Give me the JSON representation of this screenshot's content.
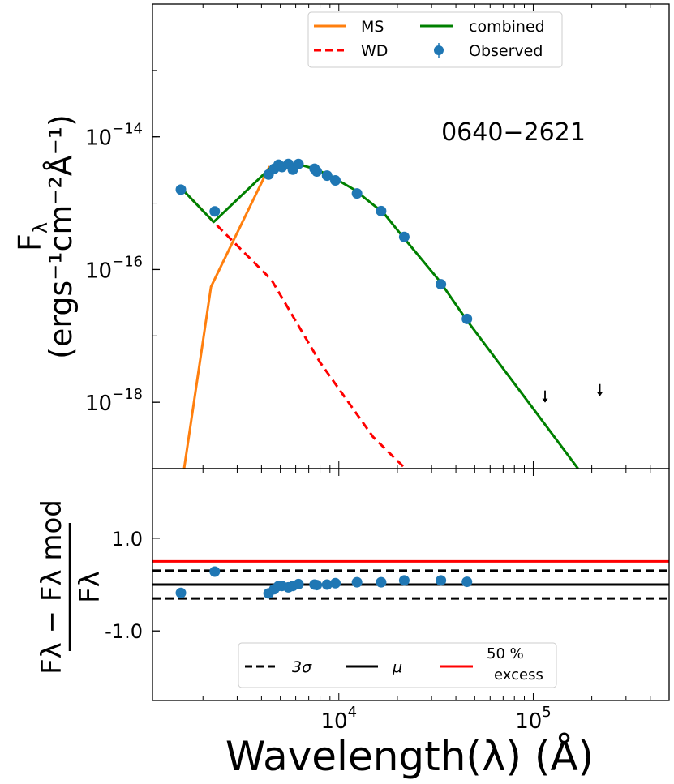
{
  "chart_data": [
    {
      "type": "line",
      "panel": "top",
      "title": "",
      "annotation": "0640−2621",
      "ylabel_line1": "F",
      "ylabel_sub1": "λ",
      "ylabel_line2": "(ergs⁻¹cm⁻²Å⁻¹)",
      "xscale": "log",
      "yscale": "log",
      "xlim": [
        1100,
        500000
      ],
      "ylim": [
        1e-19,
        1e-12
      ],
      "yticks": [
        {
          "value": 1e-14,
          "base": "10",
          "exp": "−14"
        },
        {
          "value": 1e-16,
          "base": "10",
          "exp": "−16"
        },
        {
          "value": 1e-18,
          "base": "10",
          "exp": "−18"
        }
      ],
      "legend": [
        {
          "label": "MS",
          "color": "#ff7f0e",
          "style": "solid"
        },
        {
          "label": "combined",
          "color": "#008000",
          "style": "solid"
        },
        {
          "label": "WD",
          "color": "#ff0000",
          "style": "dashed"
        },
        {
          "label": "Observed",
          "color": "#1f77b4",
          "style": "marker"
        }
      ],
      "legend_position": "top-center",
      "series": [
        {
          "name": "MS",
          "color": "#ff7f0e",
          "x": [
            1600,
            2200,
            4400
          ],
          "y": [
            1e-19,
            5.5e-17,
            3.6e-15
          ]
        },
        {
          "name": "WD",
          "color": "#ff0000",
          "x": [
            1540,
            2300,
            4500,
            8000,
            15000,
            22000
          ],
          "y": [
            1.7e-15,
            5e-16,
            7e-17,
            4e-18,
            3e-19,
            1e-19
          ]
        },
        {
          "name": "combined",
          "color": "#008000",
          "x": [
            1540,
            2270,
            4400,
            5000,
            5600,
            6300,
            7500,
            9000,
            12000,
            17000,
            21000,
            33000,
            45000,
            100000,
            170000
          ],
          "y": [
            1.7e-15,
            5.2e-16,
            3.3e-15,
            3.8e-15,
            3.9e-15,
            3.8e-15,
            3.3e-15,
            2.6e-15,
            1.6e-15,
            7.1e-16,
            3.3e-16,
            6.7e-17,
            1.8e-17,
            8e-19,
            1e-19
          ]
        },
        {
          "name": "Observed",
          "color": "#1f77b4",
          "x": [
            1540,
            2300,
            4350,
            4650,
            4900,
            5100,
            5500,
            5800,
            6200,
            7500,
            7700,
            8700,
            9600,
            12400,
            16500,
            21700,
            33500,
            45600
          ],
          "y": [
            1.6e-15,
            7.5e-16,
            2.7e-15,
            3.3e-15,
            3.8e-15,
            3.5e-15,
            3.9e-15,
            3.2e-15,
            3.9e-15,
            3.3e-15,
            3e-15,
            2.6e-15,
            2.2e-15,
            1.4e-15,
            7.6e-16,
            3.1e-16,
            6e-17,
            1.8e-17
          ]
        },
        {
          "name": "upper limits",
          "color": "#000000",
          "x": [
            115000,
            220000
          ],
          "y": [
            1.2e-18,
            1.5e-18
          ]
        }
      ]
    },
    {
      "type": "scatter",
      "panel": "bottom",
      "xscale": "log",
      "xlim": [
        1100,
        500000
      ],
      "ylim": [
        -2.5,
        2.5
      ],
      "xlabel": "Wavelength(λ) (Å)",
      "ylabel_num": "Fλ − Fλ mod",
      "ylabel_den": "Fλ",
      "yticks": [
        {
          "value": 1.0,
          "label": "1.0"
        },
        {
          "value": -1.0,
          "label": "-1.0"
        }
      ],
      "xticks": [
        {
          "value": 10000,
          "base": "10",
          "exp": "4"
        },
        {
          "value": 100000,
          "base": "10",
          "exp": "5"
        }
      ],
      "hlines": [
        {
          "name": "3σ upper",
          "y": 0.3,
          "color": "#000000",
          "style": "dashed"
        },
        {
          "name": "μ",
          "y": 0.0,
          "color": "#000000",
          "style": "solid"
        },
        {
          "name": "3σ lower",
          "y": -0.3,
          "color": "#000000",
          "style": "dashed"
        },
        {
          "name": "50 % excess",
          "y": 0.5,
          "color": "#ff0000",
          "style": "solid"
        }
      ],
      "legend": [
        {
          "label": "3σ",
          "color": "#000000",
          "style": "dashed"
        },
        {
          "label": "μ",
          "color": "#000000",
          "style": "solid"
        },
        {
          "label": "50 %",
          "label2": "excess",
          "color": "#ff0000",
          "style": "solid"
        }
      ],
      "legend_position": "bottom-center",
      "series": [
        {
          "name": "residuals",
          "color": "#1f77b4",
          "x": [
            1540,
            2300,
            4350,
            4650,
            4900,
            5100,
            5500,
            5800,
            6200,
            7500,
            7700,
            8700,
            9600,
            12400,
            16500,
            21700,
            33500,
            45600
          ],
          "y": [
            -0.18,
            0.28,
            -0.19,
            -0.1,
            -0.03,
            -0.03,
            -0.06,
            -0.03,
            0.01,
            0.0,
            -0.01,
            0.0,
            0.03,
            0.05,
            0.05,
            0.09,
            0.09,
            0.06
          ]
        }
      ]
    }
  ]
}
